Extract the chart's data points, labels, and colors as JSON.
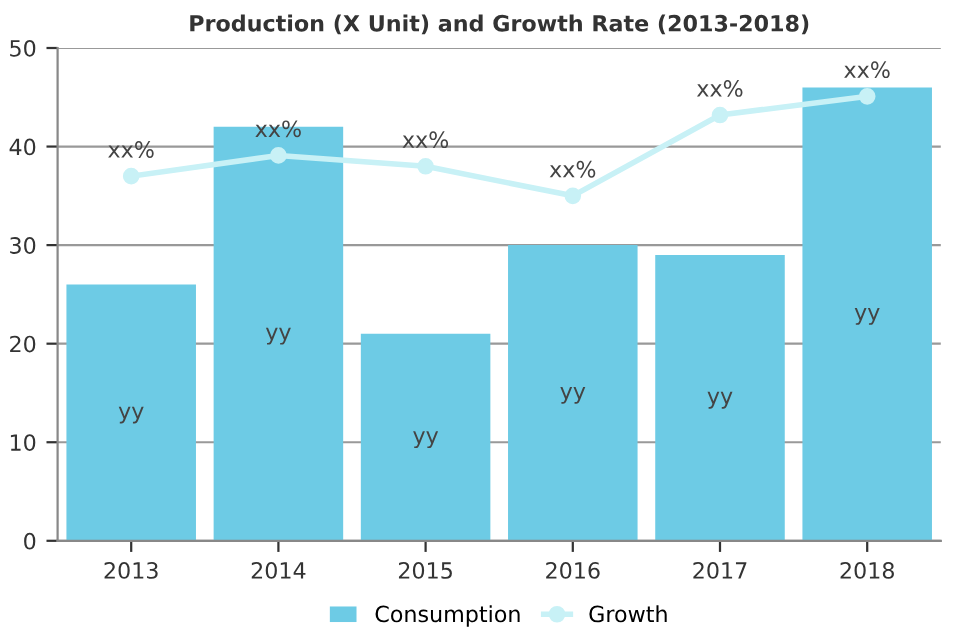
{
  "chart_data": {
    "type": "bar",
    "title": "Production (X Unit) and Growth Rate (2013-2018)",
    "categories": [
      "2013",
      "2014",
      "2015",
      "2016",
      "2017",
      "2018"
    ],
    "series": [
      {
        "name": "Consumption",
        "color": "#6dcbe5",
        "values": [
          26,
          42,
          21,
          30,
          29,
          46
        ],
        "value_labels": [
          "yy",
          "yy",
          "yy",
          "yy",
          "yy",
          "yy"
        ]
      },
      {
        "name": "Growth",
        "type": "line",
        "color": "#c8f1f6",
        "marker": "circle",
        "values": [
          37,
          39.1,
          38,
          35,
          43.2,
          45.1
        ],
        "value_labels": [
          "xx%",
          "xx%",
          "xx%",
          "xx%",
          "xx%",
          "xx%"
        ]
      }
    ],
    "ylim": [
      0,
      50
    ],
    "yticks": [
      0,
      10,
      20,
      30,
      40,
      50
    ],
    "grid": "y",
    "legend": "bottom"
  }
}
